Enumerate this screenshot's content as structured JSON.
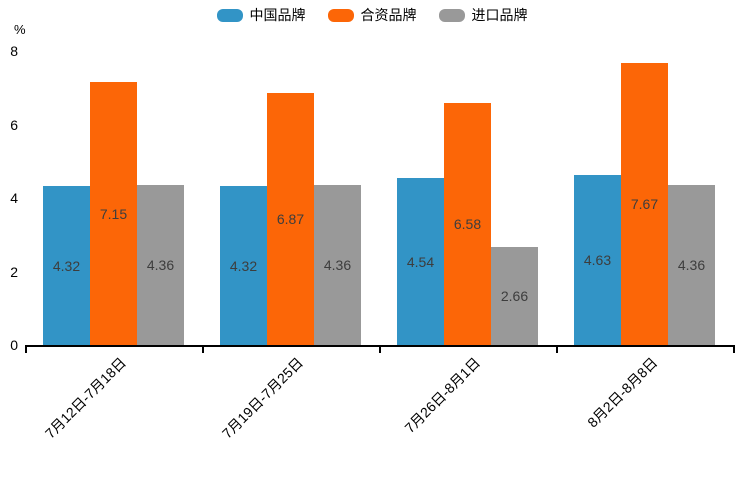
{
  "chart_data": {
    "type": "bar",
    "title": "",
    "ylabel": "%",
    "xlabel": "",
    "ylim": [
      0,
      8
    ],
    "yticks": [
      0,
      2,
      4,
      6,
      8
    ],
    "grid": false,
    "legend_position": "top-center",
    "value_labels": "inside-center",
    "categories": [
      "7月12日-7月18日",
      "7月19日-7月25日",
      "7月26日-8月1日",
      "8月2日-8月8日"
    ],
    "series": [
      {
        "name": "中国品牌",
        "color": "#3294C6",
        "values": [
          4.32,
          4.32,
          4.54,
          4.63
        ]
      },
      {
        "name": "合资品牌",
        "color": "#FC6607",
        "values": [
          7.15,
          6.87,
          6.58,
          7.67
        ]
      },
      {
        "name": "进口品牌",
        "color": "#999999",
        "values": [
          4.36,
          4.36,
          2.66,
          4.36
        ]
      }
    ],
    "colors": {
      "background": "#ffffff",
      "axis": "#000000",
      "value_label": "#3d3d3d",
      "tick_label": "#000000"
    }
  }
}
